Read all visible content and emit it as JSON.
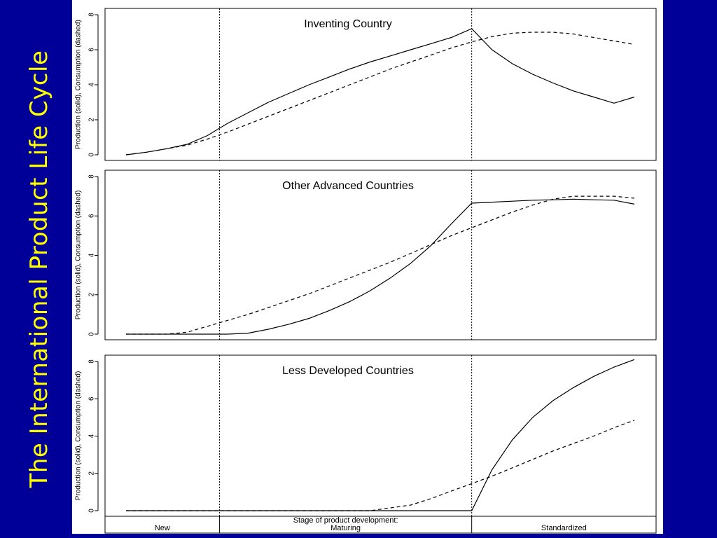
{
  "slide": {
    "title": "The International Product Life Cycle",
    "background_color": "#000099",
    "title_color": "#ffff00"
  },
  "chart_data": {
    "type": "line",
    "ylabel": "Production (solid), Consumption (dashed)",
    "xlabel": "Stage of product development:",
    "ylim": [
      0,
      8
    ],
    "yticks": [
      0,
      2,
      4,
      6,
      8
    ],
    "xlim": [
      0,
      25
    ],
    "stages": [
      {
        "label": "New",
        "start": 0,
        "end": 4.6
      },
      {
        "label": "Maturing",
        "start": 4.6,
        "end": 17
      },
      {
        "label": "Standardized",
        "start": 17,
        "end": 25
      }
    ],
    "stage_boundaries": [
      4.6,
      17
    ],
    "panels": [
      {
        "title": "Inventing Country",
        "series": [
          {
            "style": "solid",
            "x": [
              0,
              1,
              2,
              3,
              4,
              5,
              6,
              7,
              8,
              9,
              10,
              11,
              12,
              13,
              14,
              15,
              16,
              17,
              18,
              19,
              20,
              21,
              22,
              23,
              24,
              25
            ],
            "y": [
              0,
              0.15,
              0.35,
              0.6,
              1.1,
              1.8,
              2.4,
              3.0,
              3.5,
              4.0,
              4.45,
              4.9,
              5.3,
              5.65,
              6.0,
              6.35,
              6.7,
              7.2,
              6.0,
              5.2,
              4.6,
              4.1,
              3.65,
              3.3,
              2.95,
              3.3
            ]
          },
          {
            "style": "dashed",
            "x": [
              0,
              1,
              2,
              3,
              4,
              5,
              6,
              7,
              8,
              9,
              10,
              11,
              12,
              13,
              14,
              15,
              16,
              17,
              18,
              19,
              20,
              21,
              22,
              23,
              24,
              25
            ],
            "y": [
              0,
              0.15,
              0.35,
              0.55,
              0.9,
              1.3,
              1.75,
              2.2,
              2.65,
              3.1,
              3.55,
              4.0,
              4.45,
              4.9,
              5.3,
              5.7,
              6.1,
              6.45,
              6.75,
              6.95,
              7.0,
              7.0,
              6.9,
              6.7,
              6.5,
              6.3
            ]
          }
        ]
      },
      {
        "title": "Other Advanced Countries",
        "series": [
          {
            "style": "solid",
            "x": [
              0,
              1,
              2,
              3,
              4,
              5,
              6,
              7,
              8,
              9,
              10,
              11,
              12,
              13,
              14,
              15,
              16,
              17,
              18,
              19,
              20,
              21,
              22,
              23,
              24,
              25
            ],
            "y": [
              0,
              0,
              0,
              0,
              0,
              0,
              0.05,
              0.25,
              0.5,
              0.8,
              1.2,
              1.65,
              2.2,
              2.85,
              3.6,
              4.5,
              5.6,
              6.65,
              6.7,
              6.75,
              6.8,
              6.82,
              6.85,
              6.82,
              6.8,
              6.6
            ]
          },
          {
            "style": "dashed",
            "x": [
              0,
              1,
              2,
              3,
              4,
              5,
              6,
              7,
              8,
              9,
              10,
              11,
              12,
              13,
              14,
              15,
              16,
              17,
              18,
              19,
              20,
              21,
              22,
              23,
              24,
              25
            ],
            "y": [
              0,
              0,
              0,
              0.1,
              0.4,
              0.7,
              1.0,
              1.35,
              1.7,
              2.05,
              2.45,
              2.85,
              3.25,
              3.65,
              4.1,
              4.55,
              5.0,
              5.4,
              5.8,
              6.2,
              6.55,
              6.85,
              7.0,
              7.0,
              7.0,
              6.9
            ]
          }
        ]
      },
      {
        "title": "Less Developed Countries",
        "series": [
          {
            "style": "solid",
            "x": [
              0,
              2,
              4,
              6,
              8,
              10,
              12,
              14,
              16,
              17,
              18,
              19,
              20,
              21,
              22,
              23,
              24,
              25
            ],
            "y": [
              0,
              0,
              0,
              0,
              0,
              0,
              0,
              0,
              0,
              0,
              2.2,
              3.8,
              5.0,
              5.9,
              6.6,
              7.2,
              7.7,
              8.1
            ]
          },
          {
            "style": "dashed",
            "x": [
              0,
              2,
              4,
              6,
              8,
              10,
              12,
              14,
              15,
              16,
              17,
              18,
              19,
              20,
              21,
              22,
              23,
              24,
              25
            ],
            "y": [
              0,
              0,
              0,
              0,
              0,
              0,
              0,
              0.3,
              0.65,
              1.05,
              1.45,
              1.85,
              2.3,
              2.75,
              3.2,
              3.6,
              4.0,
              4.45,
              4.85
            ]
          }
        ]
      }
    ]
  }
}
